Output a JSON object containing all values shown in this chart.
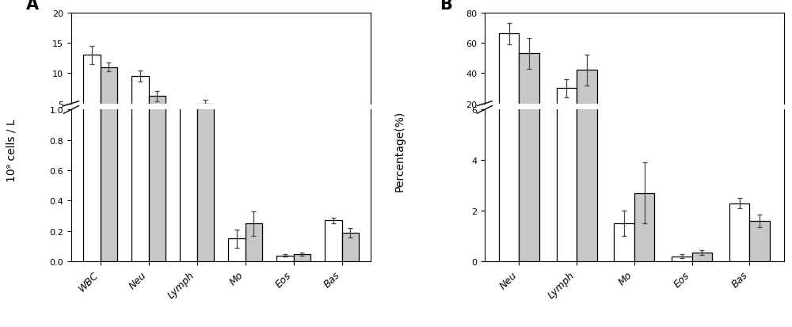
{
  "panel_A": {
    "label": "A",
    "categories": [
      "WBC",
      "Neu",
      "Lymph",
      "Mo",
      "Eos",
      "Bas"
    ],
    "white_vals": [
      13.0,
      9.5,
      4.2,
      0.15,
      0.04,
      0.27
    ],
    "gray_vals": [
      11.0,
      6.2,
      5.0,
      0.25,
      0.05,
      0.19
    ],
    "white_err": [
      1.5,
      0.9,
      0.3,
      0.06,
      0.01,
      0.02
    ],
    "gray_err": [
      0.7,
      0.9,
      0.6,
      0.08,
      0.01,
      0.03
    ],
    "ylabel": "10⁹ cells / L",
    "upper_ylim": [
      5,
      20
    ],
    "upper_yticks": [
      5,
      10,
      15,
      20
    ],
    "lower_ylim": [
      0.0,
      1.0
    ],
    "lower_yticks": [
      0.0,
      0.2,
      0.4,
      0.6,
      0.8,
      1.0
    ],
    "bar_color_white": "#ffffff",
    "bar_color_gray": "#c8c8c8",
    "bar_edge": "#000000"
  },
  "panel_B": {
    "label": "B",
    "categories": [
      "Neu",
      "Lymph",
      "Mo",
      "Eos",
      "Bas"
    ],
    "white_vals": [
      66.0,
      30.0,
      1.5,
      0.2,
      2.3
    ],
    "gray_vals": [
      53.0,
      42.0,
      2.7,
      0.35,
      1.6
    ],
    "white_err": [
      7.0,
      6.0,
      0.5,
      0.08,
      0.2
    ],
    "gray_err": [
      10.0,
      10.0,
      1.2,
      0.08,
      0.25
    ],
    "ylabel": "Percentage(%)",
    "upper_ylim": [
      20,
      80
    ],
    "upper_yticks": [
      20,
      40,
      60,
      80
    ],
    "lower_ylim": [
      0,
      6
    ],
    "lower_yticks": [
      0,
      2,
      4,
      6
    ],
    "bar_color_white": "#ffffff",
    "bar_color_gray": "#c8c8c8",
    "bar_edge": "#000000"
  }
}
